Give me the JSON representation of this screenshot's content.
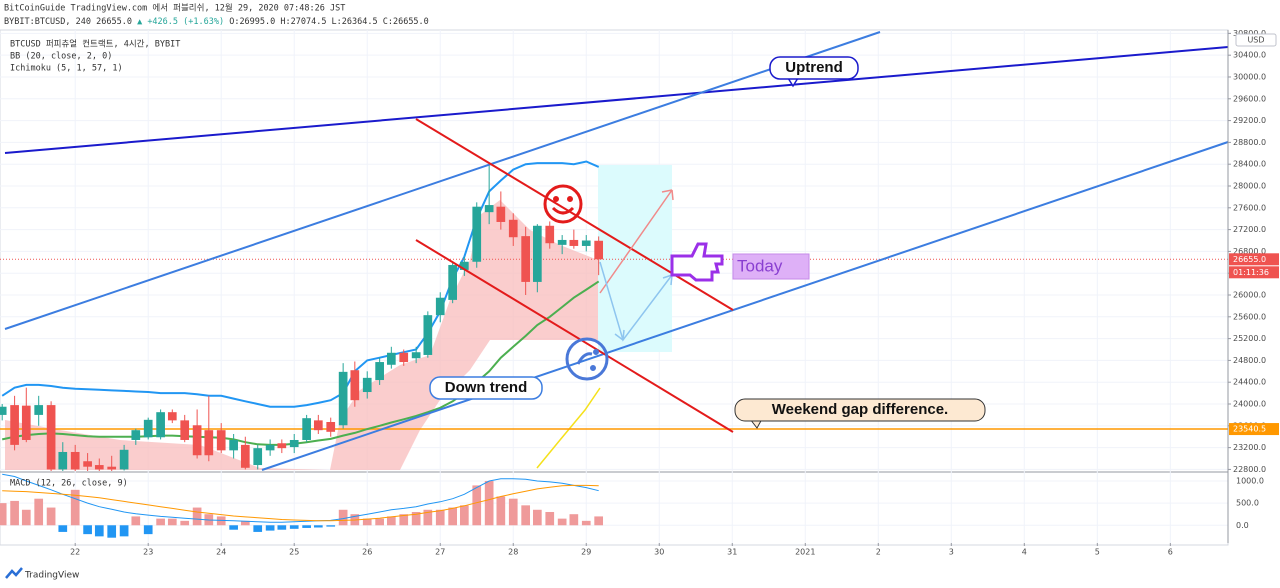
{
  "header": {
    "publisher": "BitCoinGuide TradingView.com 에서 퍼블리쉬, 12월 29, 2020 07:48:26 JST",
    "symbol": "BYBIT:BTCUSD, 240",
    "price": "26655.0",
    "change": "▲ +426.5 (+1.63%)",
    "ohlc": "O:26995.0 H:27074.5 L:26364.5 C:26655.0"
  },
  "chart_data": {
    "type": "candlestick",
    "legend": "BTCUSD 퍼피츄얼 컨트랙트, 4시간, BYBIT",
    "unit": "USD",
    "x": [
      21,
      21.17,
      21.33,
      21.5,
      21.67,
      21.83,
      22,
      22.17,
      22.33,
      22.5,
      22.67,
      22.83,
      23,
      23.17,
      23.33,
      23.5,
      23.67,
      23.83,
      24,
      24.17,
      24.33,
      24.5,
      24.67,
      24.83,
      25,
      25.17,
      25.33,
      25.5,
      25.67,
      25.83,
      26,
      26.17,
      26.33,
      26.5,
      26.67,
      26.83,
      27,
      27.17,
      27.33,
      27.5,
      27.67,
      27.83,
      28,
      28.17,
      28.33,
      28.5,
      28.67,
      28.83,
      29,
      29.17
    ],
    "open": [
      23800,
      23980,
      23970,
      23800,
      23980,
      22800,
      23120,
      22950,
      22880,
      22850,
      22800,
      23340,
      23390,
      23390,
      23850,
      23700,
      23610,
      23520,
      23520,
      23150,
      23250,
      22880,
      23150,
      23280,
      23210,
      23340,
      23700,
      23670,
      23610,
      24620,
      24220,
      24440,
      24720,
      24940,
      24840,
      24900,
      25630,
      25910,
      26460,
      26610,
      27520,
      27620,
      27380,
      27080,
      26240,
      27270,
      26920,
      27010,
      26900,
      26995
    ],
    "high": [
      24000,
      24150,
      24300,
      24150,
      24050,
      23300,
      23250,
      23100,
      23000,
      23050,
      23250,
      23550,
      23750,
      23900,
      23900,
      23800,
      23900,
      24150,
      23650,
      23450,
      23400,
      23250,
      23350,
      23350,
      23450,
      23800,
      23800,
      23750,
      24750,
      24780,
      24600,
      24850,
      25050,
      25000,
      25050,
      25700,
      26050,
      26600,
      26700,
      27700,
      28400,
      27900,
      27500,
      27250,
      27300,
      27350,
      27100,
      27200,
      27100,
      27074.5
    ],
    "low": [
      23700,
      23150,
      23300,
      23600,
      22750,
      22750,
      22750,
      22750,
      22760,
      22760,
      22780,
      23250,
      23350,
      23350,
      23650,
      23300,
      23000,
      22950,
      23100,
      23000,
      22800,
      22800,
      23050,
      23100,
      23100,
      23300,
      23450,
      23400,
      23550,
      23950,
      24100,
      24350,
      24650,
      24700,
      24750,
      24850,
      25500,
      25850,
      26350,
      26500,
      27300,
      27200,
      26900,
      26000,
      26050,
      26850,
      26750,
      26850,
      26800,
      26364.5
    ],
    "close": [
      23950,
      23250,
      23340,
      23980,
      22800,
      23120,
      22800,
      22850,
      22800,
      22800,
      23160,
      23520,
      23710,
      23850,
      23700,
      23340,
      23060,
      23060,
      23150,
      23340,
      22830,
      23190,
      23250,
      23190,
      23340,
      23740,
      23520,
      23490,
      24590,
      24070,
      24480,
      24770,
      24940,
      24770,
      24950,
      25630,
      25950,
      26550,
      26610,
      27620,
      27650,
      27340,
      27060,
      26240,
      27270,
      26950,
      27010,
      26900,
      27000,
      26655
    ],
    "up_color": "#26a69a",
    "down_color": "#ef5350",
    "xlim": [
      20.97,
      37.79
    ],
    "xticks": [
      22,
      23,
      24,
      25,
      26,
      27,
      28,
      29,
      30,
      31,
      {
        "value": 32,
        "label": "2021"
      },
      {
        "value": 33,
        "label": "2"
      },
      {
        "value": 34,
        "label": "3"
      },
      {
        "value": 35,
        "label": "4"
      },
      {
        "value": 36,
        "label": "5"
      },
      {
        "value": 37,
        "label": "6"
      }
    ],
    "ylim": [
      22771,
      30862
    ],
    "yticks": [
      {
        "value": 22800,
        "label": "22800.0"
      },
      {
        "value": 23200,
        "label": "23200.0"
      },
      {
        "value": 23600,
        "label": "23600.0"
      },
      {
        "value": 24000,
        "label": "24000.0"
      },
      {
        "value": 24400,
        "label": "24400.0"
      },
      {
        "value": 24800,
        "label": "24800.0"
      },
      {
        "value": 25200,
        "label": "25200.0"
      },
      {
        "value": 25600,
        "label": "25600.0"
      },
      {
        "value": 26000,
        "label": "26000.0"
      },
      {
        "value": 26400,
        "label": "26400.0"
      },
      {
        "value": 26800,
        "label": "26800.0"
      },
      {
        "value": 27200,
        "label": "27200.0"
      },
      {
        "value": 27600,
        "label": "27600.0"
      },
      {
        "value": 28000,
        "label": "28000.0"
      },
      {
        "value": 28400,
        "label": "28400.0"
      },
      {
        "value": 28800,
        "label": "28800.0"
      },
      {
        "value": 29200,
        "label": "29200.0"
      },
      {
        "value": 29600,
        "label": "29600.0"
      },
      {
        "value": 30000,
        "label": "30000.0"
      },
      {
        "value": 30400,
        "label": "30400.0"
      },
      {
        "value": 30800,
        "label": "30800.0"
      }
    ],
    "grid": true,
    "last_price": {
      "value": 26655,
      "label": "26655.0",
      "color": "#ef5350"
    },
    "countdown": "01:11:36",
    "hline": {
      "value": 23540.5,
      "color": "#ff9800"
    },
    "bb": {
      "legend": "BB (20, close, 2, 0)",
      "upper": {
        "color": "#2196f3",
        "values": [
          24150,
          24300,
          24350,
          24350,
          24330,
          24300,
          24280,
          24270,
          24260,
          24250,
          24240,
          24230,
          24220,
          24200,
          24200,
          24200,
          24180,
          24150,
          24150,
          24100,
          24050,
          24000,
          23950,
          23950,
          23950,
          23980,
          24020,
          24070,
          24200,
          24600,
          24800,
          24850,
          24900,
          24950,
          25000,
          25300,
          25700,
          26300,
          26700,
          27400,
          27900,
          28100,
          28300,
          28400,
          28420,
          28420,
          28420,
          28400,
          28450,
          28350
        ]
      },
      "basis": {
        "color": "#4caf50",
        "values": [
          23350,
          23400,
          23430,
          23450,
          23460,
          23450,
          23430,
          23410,
          23400,
          23400,
          23400,
          23400,
          23410,
          23420,
          23420,
          23410,
          23400,
          23390,
          23380,
          23350,
          23300,
          23260,
          23250,
          23250,
          23270,
          23300,
          23330,
          23360,
          23420,
          23470,
          23540,
          23600,
          23660,
          23720,
          23780,
          23850,
          23930,
          24050,
          24200,
          24400,
          24600,
          24850,
          25050,
          25250,
          25450,
          25600,
          25780,
          25950,
          26100,
          26250
        ]
      }
    },
    "ichimoku_legend": "Ichimoku (5, 1, 57, 1)",
    "macd": {
      "legend": "MACD (12, 26, close, 9)",
      "ylim": [
        -400,
        1180
      ],
      "yticks": [
        {
          "value": 0,
          "label": "0.0"
        },
        {
          "value": 500,
          "label": "500.0"
        },
        {
          "value": 1000,
          "label": "1000.0"
        }
      ],
      "positive_color": "#ef9a9a",
      "negative_color": "#2196f3",
      "histogram": [
        500,
        550,
        350,
        600,
        400,
        -150,
        800,
        -200,
        -250,
        -280,
        -250,
        200,
        -200,
        150,
        150,
        100,
        400,
        250,
        200,
        -100,
        100,
        -150,
        -120,
        -100,
        -80,
        -60,
        -50,
        -30,
        350,
        250,
        150,
        150,
        200,
        250,
        300,
        350,
        350,
        400,
        450,
        900,
        1000,
        650,
        600,
        450,
        350,
        300,
        150,
        250,
        100,
        200
      ],
      "macd_line": {
        "color": "#2196f3",
        "values": [
          1150,
          1100,
          1000,
          900,
          800,
          700,
          600,
          500,
          420,
          360,
          300,
          260,
          230,
          200,
          180,
          160,
          140,
          120,
          110,
          100,
          90,
          80,
          70,
          70,
          80,
          90,
          100,
          110,
          150,
          200,
          250,
          300,
          350,
          380,
          420,
          480,
          530,
          600,
          700,
          850,
          1000,
          1050,
          1050,
          1040,
          1000,
          980,
          950,
          900,
          850,
          780
        ]
      },
      "signal_line": {
        "color": "#ff9800",
        "values": [
          780,
          770,
          760,
          740,
          720,
          700,
          680,
          650,
          620,
          580,
          540,
          500,
          460,
          420,
          380,
          340,
          300,
          270,
          240,
          210,
          190,
          170,
          150,
          130,
          120,
          110,
          100,
          100,
          110,
          120,
          140,
          160,
          190,
          220,
          250,
          290,
          330,
          380,
          440,
          510,
          580,
          650,
          710,
          770,
          820,
          860,
          890,
          900,
          900,
          890
        ]
      }
    },
    "drawings": {
      "uptrend": "Uptrend",
      "down_trend": "Down trend",
      "weekend_gap": "Weekend gap difference.",
      "today": "Today"
    }
  },
  "footer": {
    "brand": "TradingView"
  }
}
